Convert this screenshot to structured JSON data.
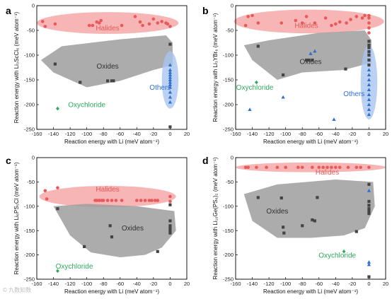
{
  "watermark": "©⁠ 九数知数",
  "colors": {
    "halides": "#e85a5a",
    "halides_fill": "#f5a3a3",
    "oxides": "#444444",
    "oxides_fill": "#9e9e9e",
    "others": "#2f6fd0",
    "others_fill": "#a9c6f0",
    "oxychloride": "#2eaa5c"
  },
  "chart_data": [
    {
      "type": "scatter",
      "panel_label": "a",
      "xlabel": "Reaction energy with Li (meV atom⁻¹)",
      "ylabel": "Reaction energy with Li₃ScCl₆ (meV atom⁻¹)",
      "xlim": [
        -160,
        20
      ],
      "ylim": [
        -250,
        0
      ],
      "xticks": [
        -160,
        -140,
        -120,
        -100,
        -80,
        -60,
        -40,
        -20,
        0,
        20
      ],
      "yticks": [
        -250,
        -200,
        -150,
        -100,
        -50,
        0
      ],
      "grid": false,
      "annotations": [
        {
          "text": "Halides",
          "x": -75,
          "y": -50,
          "color": "#e85a5a"
        },
        {
          "text": "Oxides",
          "x": -75,
          "y": -127,
          "color": "#333333"
        },
        {
          "text": "Others",
          "x": -12,
          "y": -170,
          "color": "#2f6fd0"
        },
        {
          "text": "Oxychloride",
          "x": -100,
          "y": -205,
          "color": "#2eaa5c"
        }
      ],
      "series": [
        {
          "group": "halides",
          "marker": "circle",
          "x": [
            -153,
            -150,
            -138,
            -97,
            -93,
            -88,
            -85,
            -83,
            -58,
            -42,
            -36,
            -33,
            -25,
            -20,
            -15,
            -10,
            -5,
            -3,
            0
          ],
          "y": [
            -32,
            -42,
            -37,
            -40,
            -40,
            -33,
            -35,
            -30,
            -40,
            -22,
            -33,
            -40,
            -37,
            -27,
            -35,
            -32,
            -35,
            -37,
            -42
          ]
        },
        {
          "group": "oxides",
          "marker": "square",
          "x": [
            -138,
            -108,
            -75,
            -70,
            -68,
            0,
            0
          ],
          "y": [
            -118,
            -155,
            -152,
            -152,
            -152,
            -78,
            -245
          ]
        },
        {
          "group": "others",
          "marker": "triangle",
          "x": [
            0,
            0,
            0,
            0,
            0,
            0,
            0,
            0,
            0,
            0,
            0,
            0
          ],
          "y": [
            -120,
            -130,
            -135,
            -140,
            -145,
            -150,
            -155,
            -160,
            -165,
            -175,
            -185,
            -195
          ]
        },
        {
          "group": "oxychloride",
          "marker": "diamond",
          "x": [
            -135
          ],
          "y": [
            -208
          ]
        }
      ]
    },
    {
      "type": "scatter",
      "panel_label": "b",
      "xlabel": "Reaction energy with Li (meV atom⁻¹)",
      "ylabel": "Reaction energy with Li₃YBr₆ (meV atom⁻¹)",
      "xlim": [
        -160,
        20
      ],
      "ylim": [
        -250,
        0
      ],
      "xticks": [
        -160,
        -140,
        -120,
        -100,
        -80,
        -60,
        -40,
        -20,
        0,
        20
      ],
      "yticks": [
        -250,
        -200,
        -150,
        -100,
        -50,
        0
      ],
      "grid": false,
      "annotations": [
        {
          "text": "Halides",
          "x": -75,
          "y": -45,
          "color": "#e85a5a"
        },
        {
          "text": "Oxides",
          "x": -70,
          "y": -118,
          "color": "#333333"
        },
        {
          "text": "Others",
          "x": -18,
          "y": -183,
          "color": "#2f6fd0"
        },
        {
          "text": "Oxychloride",
          "x": -137,
          "y": -170,
          "color": "#2eaa5c"
        }
      ],
      "series": [
        {
          "group": "halides",
          "marker": "circle",
          "x": [
            -148,
            -145,
            -140,
            -133,
            -105,
            -88,
            -80,
            -75,
            -65,
            -52,
            -45,
            -40,
            -35,
            -27,
            -22,
            -15,
            -8,
            -5,
            0,
            0,
            0,
            0,
            0
          ],
          "y": [
            -40,
            -22,
            -20,
            -35,
            -35,
            -30,
            -35,
            -22,
            -35,
            -25,
            -40,
            -37,
            -33,
            -35,
            -28,
            -22,
            -25,
            -20,
            -20,
            -25,
            -35,
            -45,
            -55
          ]
        },
        {
          "group": "oxides",
          "marker": "square",
          "x": [
            -133,
            -103,
            -75,
            -72,
            -68,
            -28,
            0,
            0,
            0,
            0,
            0,
            0,
            0
          ],
          "y": [
            -82,
            -140,
            -110,
            -110,
            -110,
            -128,
            -72,
            -80,
            -85,
            -93,
            -100,
            -110,
            -120
          ]
        },
        {
          "group": "others",
          "marker": "triangle",
          "x": [
            -143,
            -103,
            -70,
            -65,
            -42,
            0,
            0,
            0,
            0,
            0,
            0,
            0,
            0,
            0,
            0
          ],
          "y": [
            -210,
            -185,
            -97,
            -92,
            -230,
            -130,
            -140,
            -150,
            -160,
            -170,
            -180,
            -190,
            -200,
            -210,
            -220
          ]
        },
        {
          "group": "oxychloride",
          "marker": "diamond",
          "x": [
            -135
          ],
          "y": [
            -155
          ]
        }
      ]
    },
    {
      "type": "scatter",
      "panel_label": "c",
      "xlabel": "Reaction energy with Li (meV atom⁻¹)",
      "ylabel": "Reaction energy with Li₆PS₅Cl (meV atom⁻¹)",
      "xlim": [
        -160,
        20
      ],
      "ylim": [
        -250,
        0
      ],
      "xticks": [
        -160,
        -140,
        -120,
        -100,
        -80,
        -60,
        -40,
        -20,
        0,
        20
      ],
      "yticks": [
        -250,
        -200,
        -150,
        -100,
        -50,
        0
      ],
      "grid": false,
      "annotations": [
        {
          "text": "Halides",
          "x": -75,
          "y": -70,
          "color": "#e85a5a"
        },
        {
          "text": "Oxides",
          "x": -45,
          "y": -150,
          "color": "#333333"
        },
        {
          "text": "Oxychloride",
          "x": -115,
          "y": -228,
          "color": "#2eaa5c"
        }
      ],
      "series": [
        {
          "group": "halides",
          "marker": "circle",
          "x": [
            -150,
            -148,
            -135,
            -90,
            -88,
            -85,
            -82,
            -80,
            -75,
            -70,
            -65,
            -58,
            -40,
            -35,
            -30,
            -25,
            -22,
            -18,
            -15,
            0,
            0
          ],
          "y": [
            -68,
            -85,
            -62,
            -88,
            -88,
            -88,
            -88,
            -88,
            -88,
            -88,
            -88,
            -88,
            -88,
            -88,
            -88,
            -88,
            -88,
            -88,
            -88,
            -80,
            -90
          ]
        },
        {
          "group": "oxides",
          "marker": "square",
          "x": [
            -135,
            -103,
            -72,
            -70,
            -15,
            0,
            0,
            0,
            0,
            0,
            0
          ],
          "y": [
            -105,
            -183,
            -140,
            -163,
            -193,
            -130,
            -140,
            -145,
            -150,
            -155,
            -97
          ]
        },
        {
          "group": "oxychloride",
          "marker": "diamond",
          "x": [
            -135
          ],
          "y": [
            -233
          ]
        }
      ]
    },
    {
      "type": "scatter",
      "panel_label": "d",
      "xlabel": "Reaction energy with Li (meV atom⁻¹)",
      "ylabel": "Reaction energy with Li₁₀Ge(PS₆)₂ (meV atom⁻¹)",
      "xlim": [
        -160,
        20
      ],
      "ylim": [
        -250,
        0
      ],
      "xticks": [
        -160,
        -140,
        -120,
        -100,
        -80,
        -60,
        -40,
        -20,
        0,
        20
      ],
      "yticks": [
        -250,
        -200,
        -150,
        -100,
        -50,
        0
      ],
      "grid": false,
      "annotations": [
        {
          "text": "Halides",
          "x": -50,
          "y": -35,
          "color": "#e85a5a"
        },
        {
          "text": "Oxides",
          "x": -110,
          "y": -115,
          "color": "#333333"
        },
        {
          "text": "Oxychloride",
          "x": -38,
          "y": -206,
          "color": "#2eaa5c"
        }
      ],
      "series": [
        {
          "group": "halides",
          "marker": "circle",
          "x": [
            -148,
            -145,
            -135,
            -123,
            -110,
            -100,
            -85,
            -80,
            -68,
            -60,
            -55,
            -50,
            -45,
            -40,
            -35,
            -25,
            -15,
            -10,
            0
          ],
          "y": [
            -20,
            -20,
            -20,
            -20,
            -20,
            -20,
            -20,
            -20,
            -20,
            -20,
            -20,
            -20,
            -20,
            -20,
            -20,
            -20,
            -20,
            -20,
            -20
          ]
        },
        {
          "group": "oxides",
          "marker": "square",
          "x": [
            -133,
            -105,
            -103,
            -102,
            -80,
            -68,
            -65,
            -62,
            -15,
            0,
            0,
            0,
            0,
            0,
            0,
            0
          ],
          "y": [
            -82,
            -83,
            -143,
            -155,
            -140,
            -128,
            -130,
            -82,
            -152,
            -55,
            -90,
            -98,
            -105,
            -110,
            -115,
            -245
          ]
        },
        {
          "group": "others",
          "marker": "triangle",
          "x": [
            0,
            0,
            0
          ],
          "y": [
            -215,
            -220,
            -68
          ]
        },
        {
          "group": "oxychloride",
          "marker": "diamond",
          "x": [
            -30
          ],
          "y": [
            -193
          ]
        }
      ]
    }
  ]
}
